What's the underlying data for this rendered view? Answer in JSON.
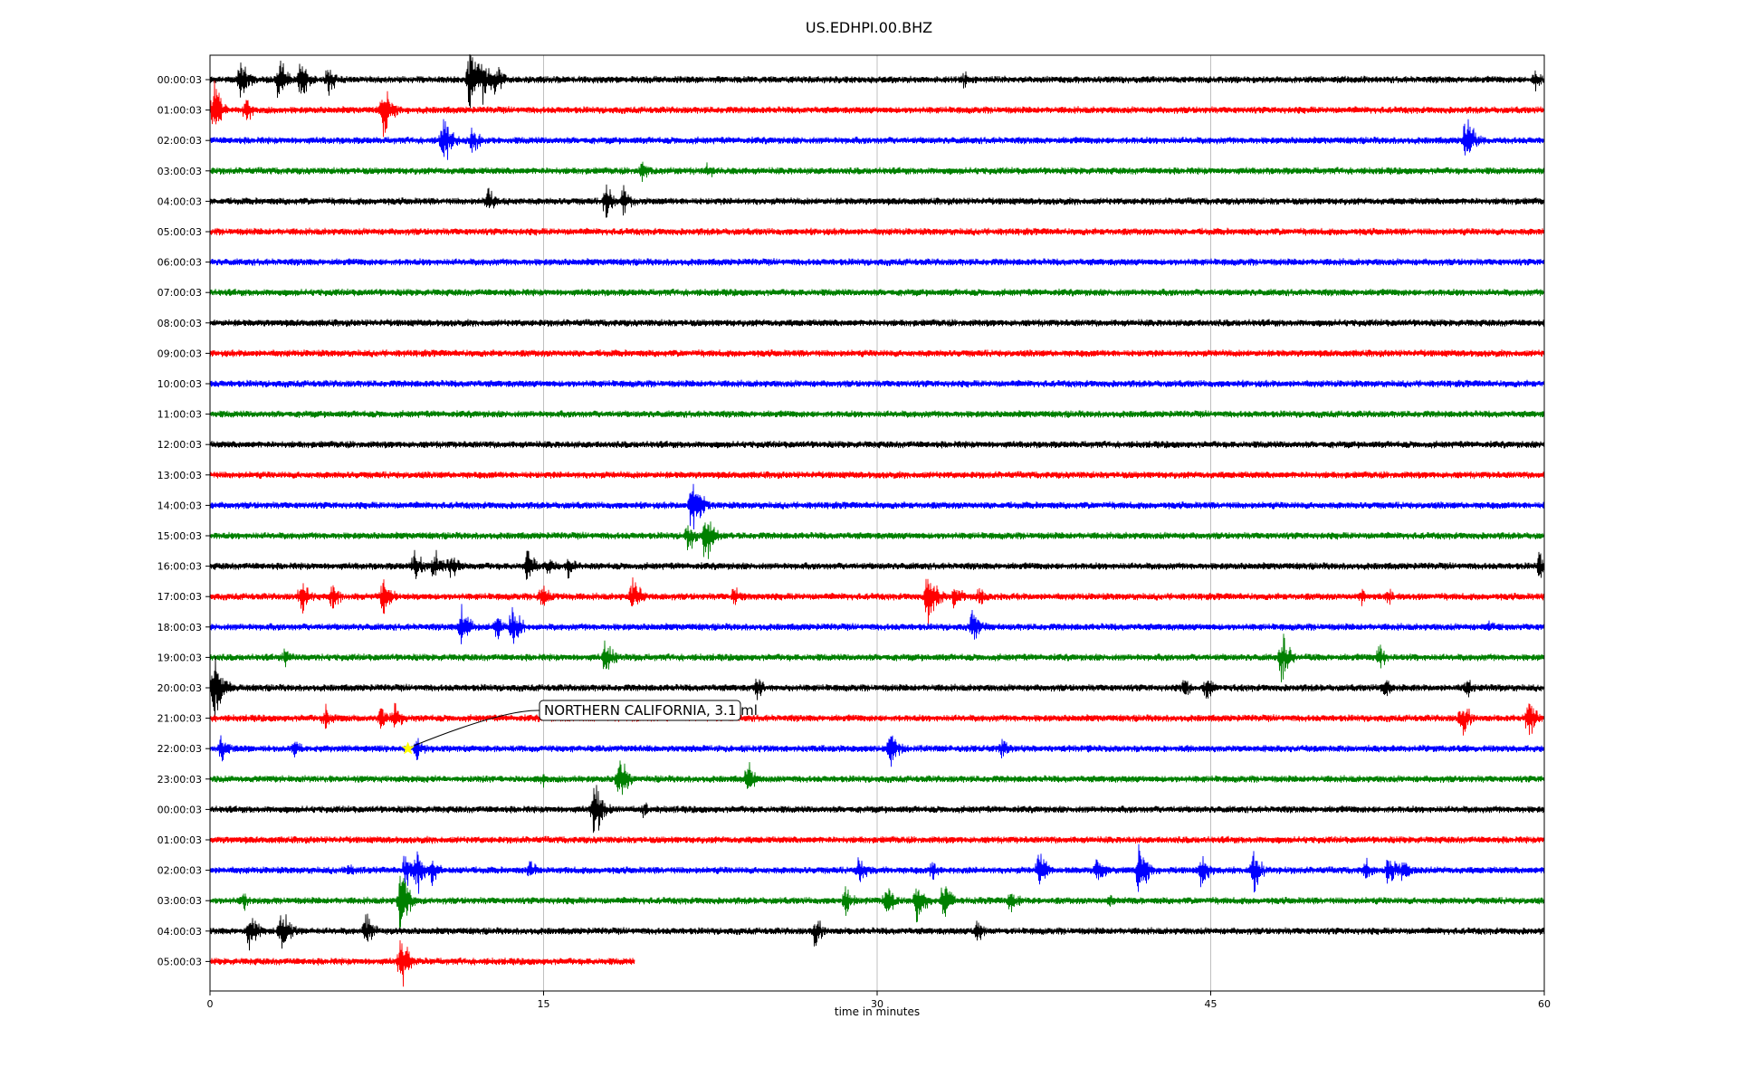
{
  "chart_data": {
    "type": "line",
    "title": "US.EDHPI.00.BHZ",
    "xlabel": "time in minutes",
    "ylabel": "",
    "xlim": [
      0,
      60
    ],
    "xticks": [
      "0",
      "15",
      "30",
      "45",
      "60"
    ],
    "grid": "vertical lines at 15, 30, 45",
    "row_labels": [
      "00:00:03",
      "01:00:03",
      "02:00:03",
      "03:00:03",
      "04:00:03",
      "05:00:03",
      "06:00:03",
      "07:00:03",
      "08:00:03",
      "09:00:03",
      "10:00:03",
      "11:00:03",
      "12:00:03",
      "13:00:03",
      "14:00:03",
      "15:00:03",
      "16:00:03",
      "17:00:03",
      "18:00:03",
      "19:00:03",
      "20:00:03",
      "21:00:03",
      "22:00:03",
      "23:00:03",
      "00:00:03",
      "01:00:03",
      "02:00:03",
      "03:00:03",
      "04:00:03",
      "05:00:03"
    ],
    "trace_colors": [
      "#000000",
      "#ff0000",
      "#0000ff",
      "#008000"
    ],
    "last_row_end_minutes": 19.1,
    "bursts": [
      {
        "row": 0,
        "events": [
          [
            1.4,
            0.8
          ],
          [
            3.1,
            0.8
          ],
          [
            4.1,
            0.7
          ],
          [
            5.3,
            0.6
          ],
          [
            11.7,
            1.5
          ],
          [
            12.3,
            0.8
          ],
          [
            12.8,
            0.6
          ],
          [
            33.9,
            0.3
          ],
          [
            59.6,
            0.4
          ]
        ]
      },
      {
        "row": 1,
        "events": [
          [
            0.2,
            0.9
          ],
          [
            1.6,
            0.5
          ],
          [
            7.8,
            0.9
          ]
        ]
      },
      {
        "row": 2,
        "events": [
          [
            10.5,
            0.9
          ],
          [
            11.8,
            0.5
          ],
          [
            56.5,
            0.9
          ]
        ]
      },
      {
        "row": 3,
        "events": [
          [
            19.4,
            0.4
          ],
          [
            22.4,
            0.3
          ]
        ]
      },
      {
        "row": 4,
        "events": [
          [
            12.5,
            0.5
          ],
          [
            17.8,
            0.6
          ],
          [
            18.6,
            0.5
          ]
        ]
      },
      {
        "row": 14,
        "events": [
          [
            21.7,
            1.1
          ]
        ]
      },
      {
        "row": 15,
        "events": [
          [
            21.5,
            0.6
          ],
          [
            22.3,
            1.0
          ]
        ]
      },
      {
        "row": 16,
        "events": [
          [
            9.2,
            0.6
          ],
          [
            10.1,
            0.6
          ],
          [
            10.8,
            0.5
          ],
          [
            14.3,
            0.6
          ],
          [
            15.2,
            0.4
          ],
          [
            16.1,
            0.4
          ],
          [
            59.8,
            0.5
          ]
        ]
      },
      {
        "row": 17,
        "events": [
          [
            4.1,
            0.7
          ],
          [
            5.5,
            0.5
          ],
          [
            7.8,
            0.7
          ],
          [
            14.9,
            0.5
          ],
          [
            19.0,
            0.7
          ],
          [
            23.6,
            0.4
          ],
          [
            32.3,
            1.1
          ],
          [
            33.5,
            0.5
          ],
          [
            34.6,
            0.4
          ],
          [
            51.8,
            0.3
          ],
          [
            53.0,
            0.3
          ]
        ]
      },
      {
        "row": 18,
        "events": [
          [
            11.3,
            0.8
          ],
          [
            12.9,
            0.6
          ],
          [
            13.6,
            0.8
          ],
          [
            34.3,
            0.7
          ],
          [
            57.5,
            0.3
          ]
        ]
      },
      {
        "row": 19,
        "events": [
          [
            3.4,
            0.4
          ],
          [
            17.8,
            0.7
          ],
          [
            48.2,
            0.9
          ],
          [
            52.6,
            0.5
          ]
        ]
      },
      {
        "row": 20,
        "events": [
          [
            0.2,
            1.2
          ],
          [
            24.6,
            0.4
          ],
          [
            43.8,
            0.4
          ],
          [
            44.8,
            0.5
          ],
          [
            56.5,
            0.4
          ],
          [
            52.8,
            0.4
          ]
        ]
      },
      {
        "row": 21,
        "events": [
          [
            5.2,
            0.5
          ],
          [
            7.7,
            0.5
          ],
          [
            8.3,
            0.5
          ],
          [
            56.3,
            0.7
          ],
          [
            59.3,
            0.7
          ]
        ]
      },
      {
        "row": 22,
        "events": [
          [
            0.5,
            0.5
          ],
          [
            3.8,
            0.4
          ],
          [
            9.3,
            0.4
          ],
          [
            30.6,
            0.7
          ],
          [
            35.6,
            0.4
          ]
        ]
      },
      {
        "row": 23,
        "events": [
          [
            15.0,
            0.3
          ],
          [
            18.4,
            0.8
          ],
          [
            24.2,
            0.6
          ]
        ]
      },
      {
        "row": 24,
        "events": [
          [
            17.3,
            1.1
          ],
          [
            19.5,
            0.3
          ]
        ]
      },
      {
        "row": 26,
        "events": [
          [
            6.2,
            0.3
          ],
          [
            8.8,
            0.7
          ],
          [
            9.3,
            0.8
          ],
          [
            10.0,
            0.5
          ],
          [
            14.4,
            0.4
          ],
          [
            29.2,
            0.5
          ],
          [
            32.5,
            0.4
          ],
          [
            37.3,
            0.7
          ],
          [
            39.9,
            0.5
          ],
          [
            41.8,
            0.9
          ],
          [
            44.6,
            0.6
          ],
          [
            46.9,
            0.8
          ],
          [
            52.0,
            0.4
          ],
          [
            53.0,
            0.6
          ],
          [
            53.6,
            0.5
          ]
        ]
      },
      {
        "row": 27,
        "events": [
          [
            1.5,
            0.4
          ],
          [
            8.6,
            1.2
          ],
          [
            28.6,
            0.5
          ],
          [
            30.4,
            0.6
          ],
          [
            31.8,
            0.8
          ],
          [
            33.0,
            0.9
          ],
          [
            36.0,
            0.5
          ],
          [
            40.5,
            0.3
          ]
        ]
      },
      {
        "row": 28,
        "events": [
          [
            1.8,
            0.7
          ],
          [
            3.2,
            1.0
          ],
          [
            7.0,
            0.6
          ],
          [
            27.2,
            0.6
          ],
          [
            34.5,
            0.5
          ]
        ]
      },
      {
        "row": 29,
        "events": [
          [
            8.6,
            0.9
          ]
        ]
      }
    ],
    "annotations": [
      {
        "text": "NORTHERN CALIFORNIA, 3.1 ml",
        "row": 22,
        "x": 8.9,
        "marker": "star",
        "marker_color": "#ffff00"
      }
    ]
  }
}
